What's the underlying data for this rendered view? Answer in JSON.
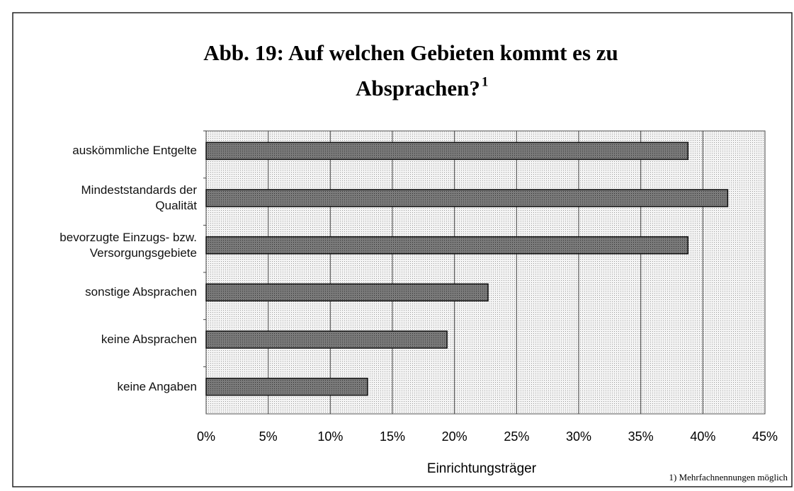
{
  "chart_data": {
    "type": "hbar",
    "title": "Abb. 19: Auf welchen Gebieten kommt es zu Absprachen?",
    "title_note_marker": "1",
    "x_label": "Einrichtungsträger",
    "footnote": "1) Mehrfachnennungen möglich",
    "categories": [
      "auskömmliche Entgelte",
      "Mindeststandards der\nQualität",
      "bevorzugte Einzugs- bzw.\nVersorgungsgebiete",
      "sonstige Absprachen",
      "keine Absprachen",
      "keine Angaben"
    ],
    "values": [
      38.8,
      42.0,
      38.8,
      22.7,
      19.4,
      13.0
    ],
    "color": "#6e6e6e",
    "xlim": [
      0,
      45
    ],
    "xticks": [
      {
        "value": 0,
        "label": "0%"
      },
      {
        "value": 5,
        "label": "5%"
      },
      {
        "value": 10,
        "label": "10%"
      },
      {
        "value": 15,
        "label": "15%"
      },
      {
        "value": 20,
        "label": "20%"
      },
      {
        "value": 25,
        "label": "25%"
      },
      {
        "value": 30,
        "label": "30%"
      },
      {
        "value": 35,
        "label": "35%"
      },
      {
        "value": 40,
        "label": "40%"
      },
      {
        "value": 45,
        "label": "45%"
      }
    ],
    "grid": true
  }
}
